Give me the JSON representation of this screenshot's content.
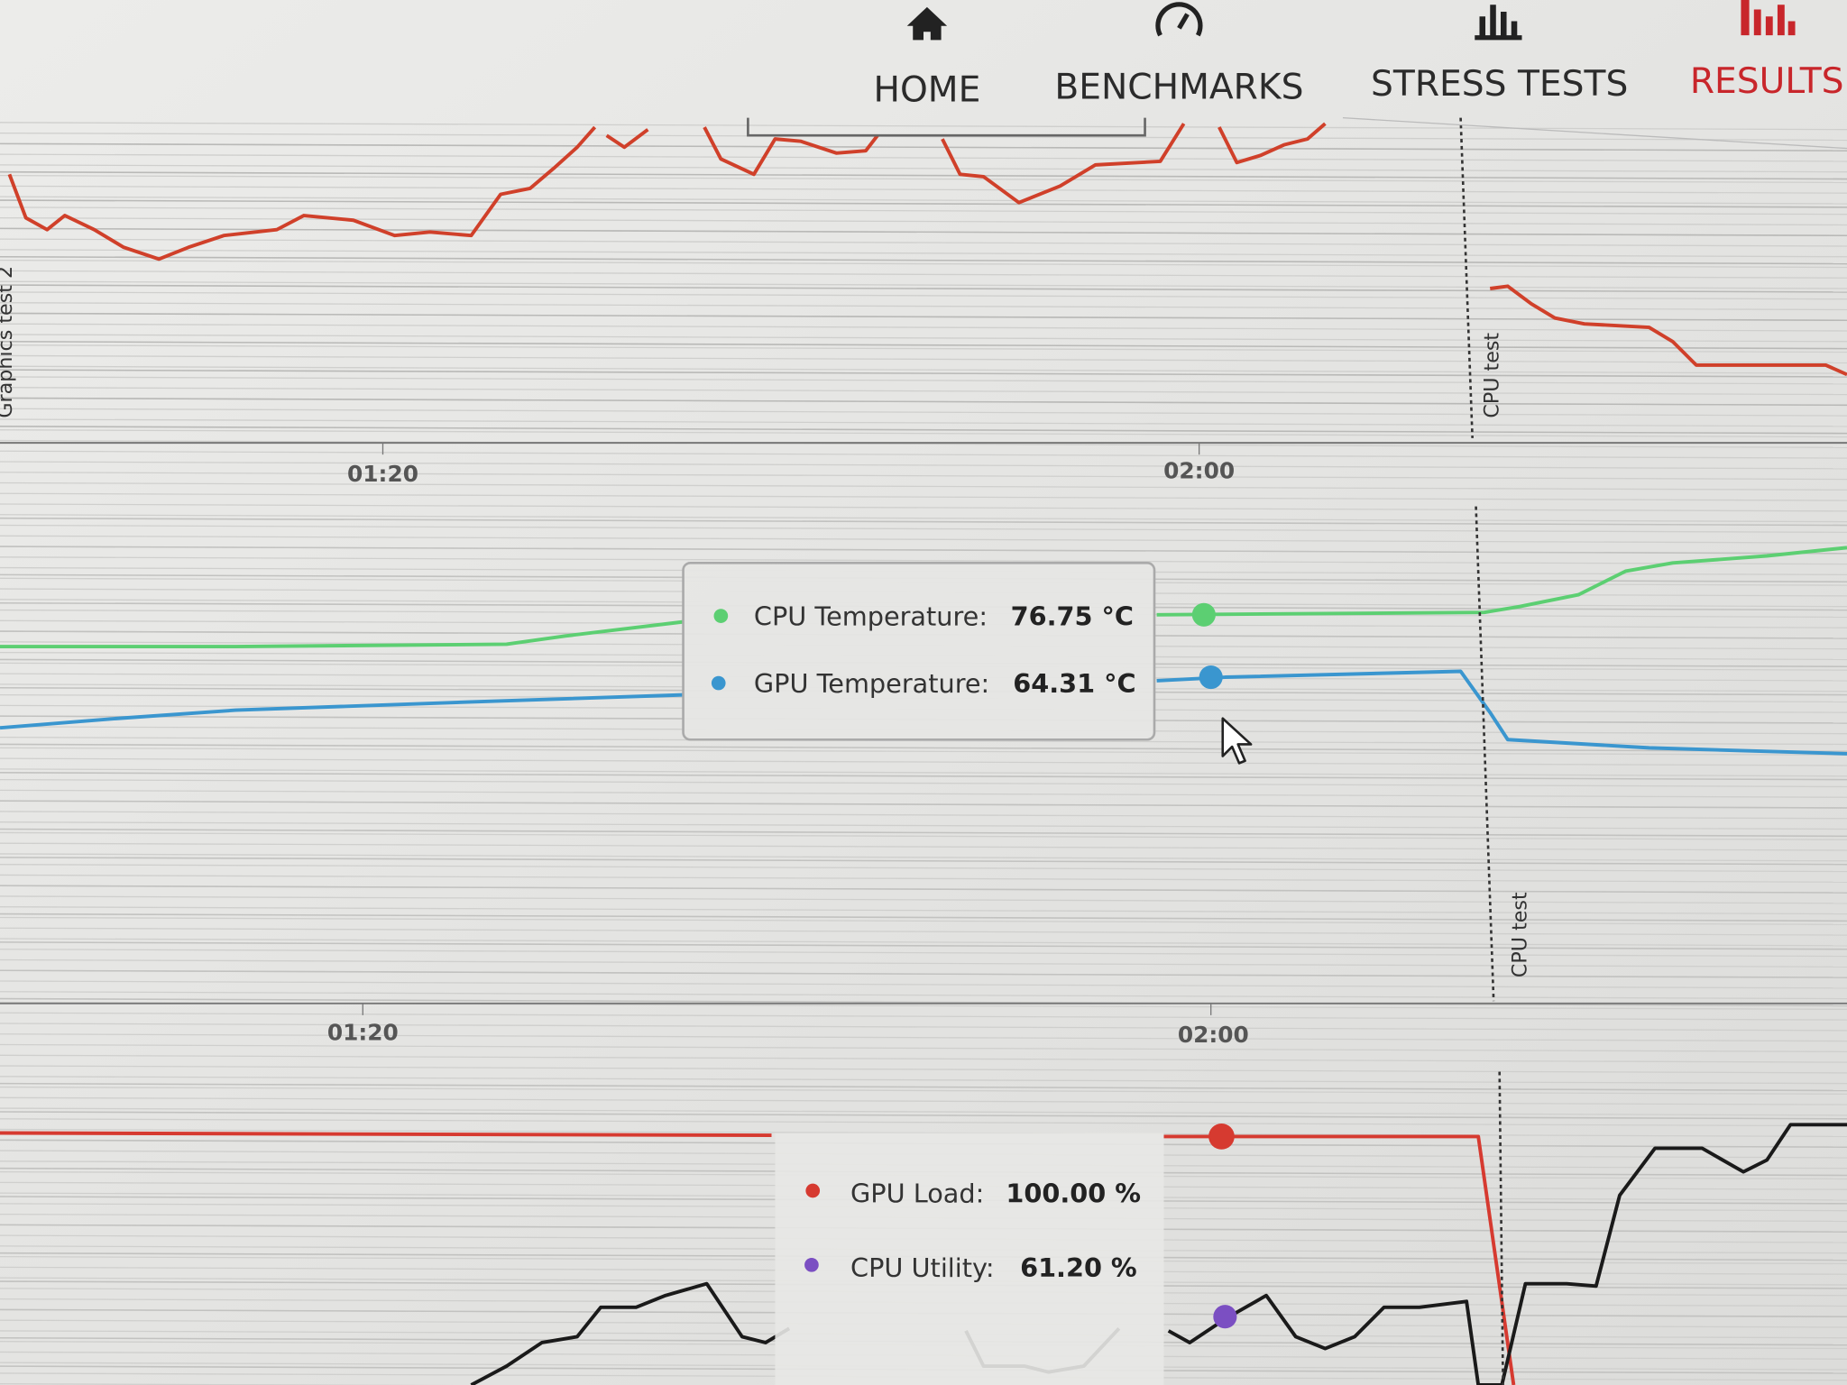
{
  "nav": {
    "items": [
      "HOME",
      "BENCHMARKS",
      "STRESS TESTS",
      "RESULTS"
    ]
  },
  "charts": [
    {
      "x_labels": [
        "01:20",
        "02:00"
      ],
      "markers": [
        "Graphics test 2",
        "CPU test"
      ]
    },
    {
      "x_labels": [
        "01:20",
        "02:00"
      ],
      "markers": [
        "CPU test"
      ],
      "tooltip": [
        {
          "label": "CPU Temperature:",
          "value": "76.75 °C"
        },
        {
          "label": "GPU Temperature:",
          "value": "64.31 °C"
        }
      ]
    },
    {
      "tooltip": [
        {
          "label": "GPU Load:",
          "value": "100.00 %"
        },
        {
          "label": "CPU Utility:",
          "value": "61.20 %"
        }
      ]
    }
  ]
}
